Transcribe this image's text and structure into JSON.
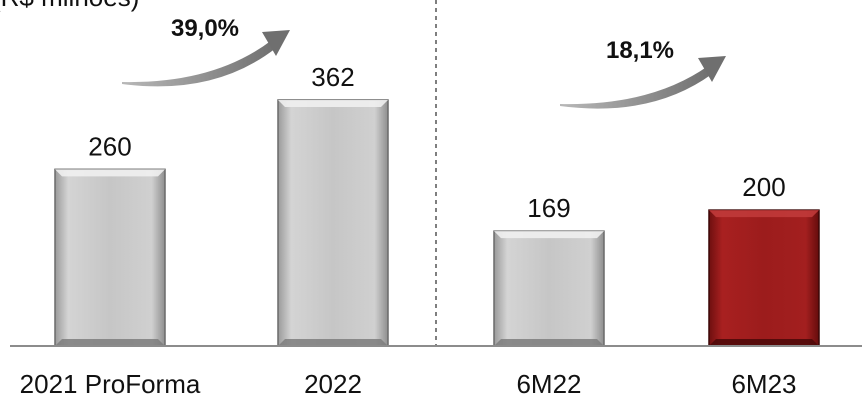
{
  "chart_data": {
    "type": "bar",
    "ylabel": "(R$ milhões)",
    "categories": [
      "2021 ProForma",
      "2022",
      "6M22",
      "6M23"
    ],
    "values": [
      260,
      362,
      169,
      200
    ],
    "bar_colors": [
      "#c8c8c8",
      "#c8c8c8",
      "#c8c8c8",
      "#a01c1c"
    ],
    "growth_annotations": [
      {
        "label": "39,0%",
        "from": "2021 ProForma",
        "to": "2022"
      },
      {
        "label": "18,1%",
        "from": "6M22",
        "to": "6M23"
      }
    ],
    "divider_between": [
      "2022",
      "6M22"
    ],
    "ylim": [
      0,
      420
    ],
    "grid": false
  }
}
